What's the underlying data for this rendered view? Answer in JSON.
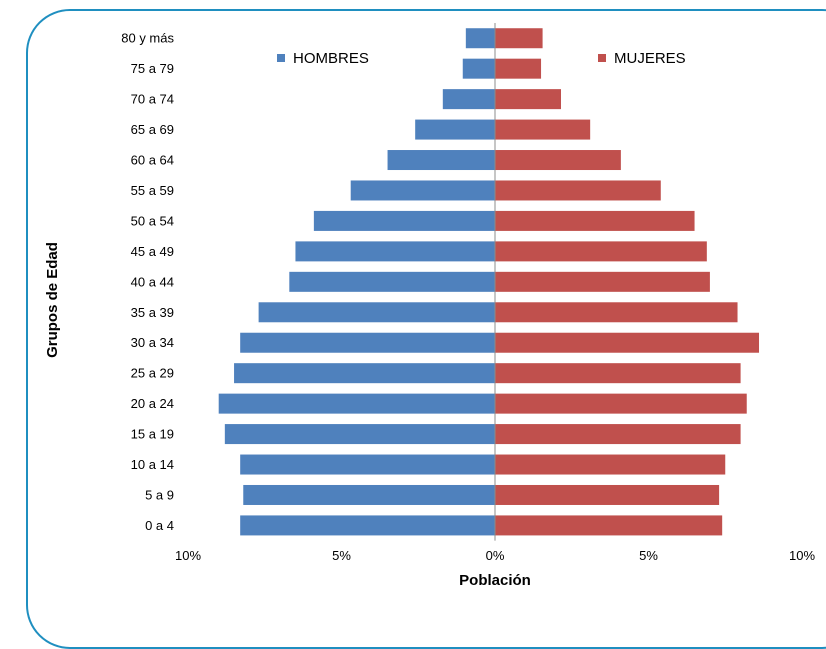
{
  "chart_data": {
    "type": "bar",
    "orientation": "horizontal",
    "subtype": "population-pyramid",
    "title": "",
    "xlabel": "Población",
    "ylabel": "Grupos de Edad",
    "categories": [
      "0 a 4",
      "5 a 9",
      "10 a 14",
      "15 a 19",
      "20 a 24",
      "25 a 29",
      "30 a 34",
      "35 a 39",
      "40 a 44",
      "45 a 49",
      "50 a 54",
      "55 a 59",
      "60 a 64",
      "65 a 69",
      "70 a 74",
      "75 a 79",
      "80 y más"
    ],
    "series": [
      {
        "name": "HOMBRES",
        "color": "#4f81bd",
        "values": [
          -8.3,
          -8.2,
          -8.3,
          -8.8,
          -9.0,
          -8.5,
          -8.3,
          -7.7,
          -6.7,
          -6.5,
          -5.9,
          -4.7,
          -3.5,
          -2.6,
          -1.7,
          -1.05,
          -0.95
        ]
      },
      {
        "name": "MUJERES",
        "color": "#c0504d",
        "values": [
          7.4,
          7.3,
          7.5,
          8.0,
          8.2,
          8.0,
          8.6,
          7.9,
          7.0,
          6.9,
          6.5,
          5.4,
          4.1,
          3.1,
          2.15,
          1.5,
          1.55
        ]
      }
    ],
    "xlim": [
      -10,
      10
    ],
    "xticks": [
      "10%",
      "5%",
      "0%",
      "5%",
      "10%"
    ],
    "legend_placement": "top",
    "grid": false
  }
}
